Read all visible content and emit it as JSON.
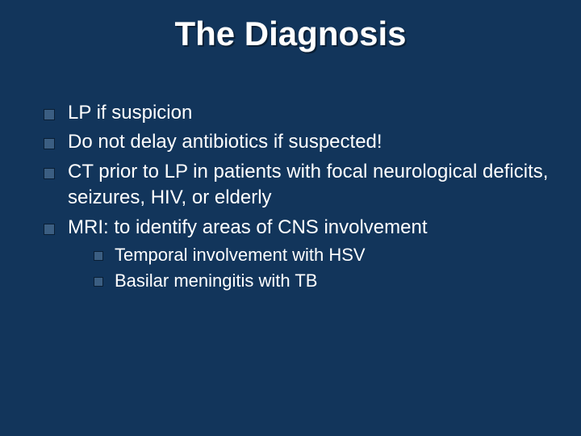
{
  "slide": {
    "title": "The Diagnosis",
    "background_color": "#12355b",
    "text_color": "#ffffff",
    "bullet_color": "#3b5e82",
    "title_fontsize": 42,
    "body_fontsize": 24,
    "sub_fontsize": 22,
    "bullets": [
      {
        "text": "LP if suspicion"
      },
      {
        "text": "Do not delay antibiotics if suspected!"
      },
      {
        "text": "CT prior to LP in patients with focal neurological deficits, seizures, HIV, or elderly"
      },
      {
        "text": "MRI: to identify areas of CNS involvement",
        "sub": [
          {
            "text": "Temporal involvement with HSV"
          },
          {
            "text": "Basilar meningitis with TB"
          }
        ]
      }
    ]
  }
}
